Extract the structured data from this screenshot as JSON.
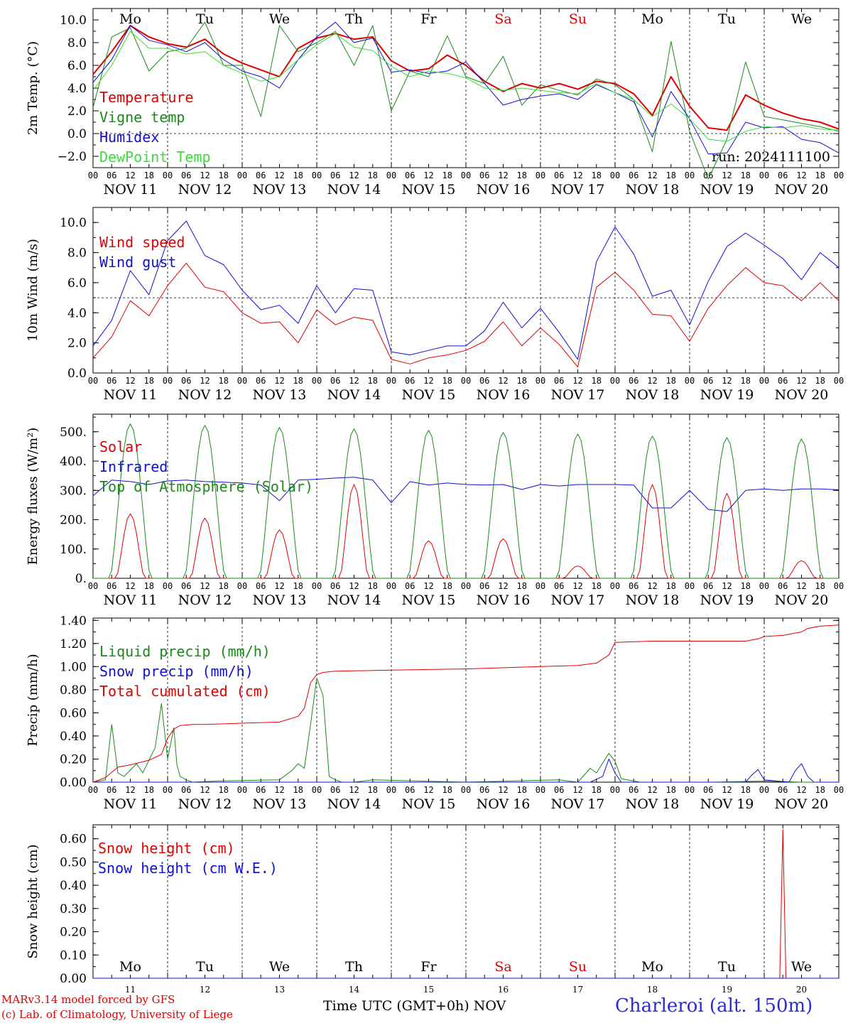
{
  "chart_data": [
    {
      "type": "line",
      "ylabel": "2m Temp. (°C)",
      "ylim": [
        -3.0,
        11.0
      ],
      "yticks": [
        "10.0",
        "8.0",
        "6.0",
        "4.0",
        "2.0",
        "0.0",
        "−2.0"
      ],
      "ytick_values": [
        10,
        8,
        6,
        4,
        2,
        0,
        -2
      ],
      "reference_line": 0,
      "run_label": "run: 2024111100",
      "day_names": [
        "Mo",
        "Tu",
        "We",
        "Th",
        "Fr",
        "Sa",
        "Su",
        "Mo",
        "Tu",
        "We"
      ],
      "day_colors": [
        "#000000",
        "#000000",
        "#000000",
        "#000000",
        "#000000",
        "#e00000",
        "#e00000",
        "#000000",
        "#000000",
        "#000000"
      ],
      "x_hours_from_start": [
        0,
        6,
        12,
        18,
        24,
        30,
        36,
        42,
        48,
        54,
        60,
        66,
        72,
        78,
        84,
        90,
        96,
        102,
        108,
        114,
        120,
        126,
        132,
        138,
        144,
        150,
        156,
        162,
        168,
        174,
        180,
        186,
        192,
        198,
        204,
        210,
        216,
        222,
        228,
        234,
        240
      ],
      "series": [
        {
          "name": "Temperature",
          "color": "#e00000",
          "width": 2,
          "values": [
            5.2,
            7.2,
            9.5,
            8.5,
            7.9,
            7.6,
            8.3,
            7.0,
            6.2,
            5.6,
            5.0,
            7.5,
            8.4,
            8.8,
            8.3,
            8.5,
            6.4,
            5.5,
            5.7,
            6.9,
            6.0,
            4.6,
            3.7,
            4.4,
            4.0,
            4.4,
            3.9,
            4.6,
            4.4,
            3.5,
            1.6,
            5.0,
            2.4,
            0.5,
            0.3,
            3.4,
            2.5,
            1.8,
            1.3,
            1.0,
            0.4
          ]
        },
        {
          "name": "Vigne temp",
          "color": "#1a8a1a",
          "width": 1,
          "values": [
            2.3,
            8.5,
            9.3,
            5.5,
            7.2,
            7.5,
            9.8,
            6.0,
            6.0,
            1.5,
            9.5,
            7.2,
            8.0,
            9.0,
            6.0,
            9.5,
            2.0,
            5.5,
            5.0,
            8.6,
            5.0,
            4.4,
            6.8,
            2.5,
            4.3,
            3.8,
            3.4,
            4.8,
            4.3,
            3.0,
            -1.6,
            8.1,
            0.2,
            -4.0,
            -0.5,
            6.3,
            1.5,
            1.2,
            0.9,
            0.6,
            0.2
          ]
        },
        {
          "name": "Humidex",
          "color": "#1010d0",
          "width": 1,
          "values": [
            4.5,
            6.5,
            9.5,
            8.2,
            7.8,
            7.2,
            8.0,
            6.5,
            5.5,
            5.0,
            4.0,
            6.5,
            8.5,
            9.8,
            8.0,
            8.4,
            5.4,
            5.6,
            5.3,
            5.5,
            6.3,
            4.4,
            2.5,
            3.0,
            3.3,
            3.5,
            3.0,
            4.3,
            3.6,
            2.8,
            -0.3,
            3.7,
            1.3,
            -1.8,
            -1.7,
            1.0,
            0.5,
            0.6,
            -0.5,
            -0.8,
            -1.7
          ]
        },
        {
          "name": "DewPoint Temp",
          "color": "#3cdc3c",
          "width": 1,
          "values": [
            3.8,
            6.0,
            9.0,
            7.5,
            7.5,
            7.0,
            7.2,
            6.0,
            5.3,
            4.6,
            5.0,
            6.5,
            7.8,
            8.8,
            7.6,
            7.3,
            5.9,
            5.0,
            5.5,
            5.3,
            4.9,
            4.0,
            3.8,
            4.0,
            3.8,
            3.6,
            3.5,
            4.4,
            3.6,
            3.0,
            1.5,
            2.6,
            1.3,
            -0.5,
            -0.7,
            0.2,
            0.6,
            0.5,
            0.7,
            0.4,
            0.3
          ]
        }
      ]
    },
    {
      "type": "line",
      "ylabel": "10m Wind (m/s)",
      "ylim": [
        0.0,
        11.0
      ],
      "yticks": [
        "10.0",
        "8.0",
        "6.0",
        "4.0",
        "2.0",
        "0.0"
      ],
      "ytick_values": [
        10,
        8,
        6,
        4,
        2,
        0
      ],
      "reference_line": 5,
      "x_hours_from_start": [
        0,
        6,
        12,
        18,
        24,
        30,
        36,
        42,
        48,
        54,
        60,
        66,
        72,
        78,
        84,
        90,
        96,
        102,
        108,
        114,
        120,
        126,
        132,
        138,
        144,
        150,
        156,
        162,
        168,
        174,
        180,
        186,
        192,
        198,
        204,
        210,
        216,
        222,
        228,
        234,
        240
      ],
      "series": [
        {
          "name": "Wind speed",
          "color": "#e00000",
          "width": 1,
          "values": [
            1.0,
            2.4,
            4.8,
            3.8,
            5.8,
            7.3,
            5.7,
            5.4,
            4.0,
            3.3,
            3.4,
            2.0,
            4.2,
            3.2,
            3.7,
            3.5,
            0.9,
            0.6,
            1.0,
            1.2,
            1.5,
            2.1,
            3.4,
            1.8,
            3.0,
            1.9,
            0.4,
            5.7,
            6.7,
            5.5,
            3.9,
            3.8,
            2.1,
            4.3,
            5.8,
            7.0,
            6.0,
            5.8,
            4.8,
            6.0,
            4.8
          ]
        },
        {
          "name": "Wind gust",
          "color": "#1010d0",
          "width": 1,
          "values": [
            1.8,
            3.5,
            6.8,
            5.2,
            8.8,
            10.1,
            7.8,
            7.2,
            5.5,
            4.2,
            4.5,
            3.3,
            5.8,
            4.0,
            5.6,
            5.5,
            1.4,
            1.2,
            1.5,
            1.8,
            1.8,
            2.8,
            4.7,
            3.0,
            4.3,
            2.7,
            0.9,
            7.4,
            9.7,
            7.9,
            5.1,
            5.5,
            3.2,
            6.1,
            8.4,
            9.3,
            8.5,
            7.6,
            6.2,
            8.0,
            7.0
          ]
        }
      ]
    },
    {
      "type": "line",
      "ylabel": "Energy fluxes (W/m²)",
      "ylim": [
        0,
        560
      ],
      "yticks": [
        "500.",
        "400.",
        "300.",
        "200.",
        "100.",
        "0."
      ],
      "ytick_values": [
        500,
        400,
        300,
        200,
        100,
        0
      ],
      "reference_line": null,
      "daily_peaks": {
        "solar": [
          220,
          205,
          165,
          320,
          128,
          135,
          42,
          320,
          290,
          60
        ],
        "top_of_atmosphere": [
          527,
          522,
          515,
          510,
          505,
          498,
          492,
          485,
          480,
          475
        ]
      },
      "series": [
        {
          "name": "Solar",
          "color": "#e00000",
          "width": 1
        },
        {
          "name": "Infrared",
          "color": "#1010d0",
          "width": 1,
          "x_hours_from_start": [
            0,
            6,
            12,
            18,
            24,
            30,
            36,
            42,
            48,
            54,
            60,
            66,
            72,
            78,
            84,
            90,
            96,
            102,
            108,
            114,
            120,
            126,
            132,
            138,
            144,
            150,
            156,
            162,
            168,
            174,
            180,
            186,
            192,
            198,
            204,
            210,
            216,
            222,
            228,
            234,
            240
          ],
          "values": [
            282,
            335,
            330,
            320,
            332,
            335,
            330,
            328,
            325,
            318,
            265,
            335,
            338,
            342,
            345,
            335,
            258,
            330,
            318,
            325,
            320,
            318,
            320,
            303,
            320,
            315,
            320,
            320,
            320,
            318,
            240,
            240,
            300,
            235,
            228,
            300,
            305,
            300,
            305,
            305,
            302
          ]
        },
        {
          "name": "Top of Atmosphere (Solar)",
          "color": "#1a8a1a",
          "width": 1
        }
      ]
    },
    {
      "type": "line",
      "ylabel": "Precip (mm/h)",
      "ylim": [
        0.0,
        1.42
      ],
      "yticks": [
        "1.40",
        "1.20",
        "1.00",
        "0.80",
        "0.60",
        "0.40",
        "0.20",
        "0.00"
      ],
      "ytick_values": [
        1.4,
        1.2,
        1.0,
        0.8,
        0.6,
        0.4,
        0.2,
        0.0
      ],
      "reference_line": null,
      "series": [
        {
          "name": "Liquid precip (mm/h)",
          "color": "#1a8a1a",
          "width": 1,
          "x_hours_from_start": [
            0,
            4,
            6,
            8,
            10,
            14,
            16,
            20,
            22,
            24,
            26,
            27,
            28,
            30,
            32,
            40,
            60,
            64,
            66,
            68,
            70,
            72,
            74,
            76,
            78,
            80,
            84,
            90,
            120,
            150,
            156,
            160,
            162,
            166,
            168,
            170,
            176,
            200,
            216,
            228,
            240
          ],
          "values": [
            0,
            0.02,
            0.5,
            0.08,
            0.05,
            0.16,
            0.08,
            0.3,
            0.68,
            0.2,
            0.47,
            0.15,
            0.05,
            0.02,
            0.0,
            0.01,
            0.02,
            0.1,
            0.16,
            0.12,
            0.5,
            0.9,
            0.75,
            0.05,
            0.02,
            0.0,
            0.0,
            0.02,
            0.0,
            0.02,
            0.0,
            0.12,
            0.08,
            0.25,
            0.18,
            0.03,
            0.0,
            0.0,
            0.01,
            0.0,
            0.0
          ]
        },
        {
          "name": "Snow precip (mm/h)",
          "color": "#1010d0",
          "width": 1,
          "x_hours_from_start": [
            0,
            160,
            164,
            166,
            168,
            170,
            200,
            210,
            212,
            214,
            216,
            224,
            226,
            228,
            230,
            232,
            240
          ],
          "values": [
            0,
            0,
            0.05,
            0.2,
            0.08,
            0.0,
            0.0,
            0.0,
            0.06,
            0.11,
            0.02,
            0.0,
            0.1,
            0.16,
            0.05,
            0.0,
            0.0
          ]
        },
        {
          "name": "Total cumulated (cm)",
          "color": "#e00000",
          "width": 1,
          "x_hours_from_start": [
            0,
            4,
            8,
            12,
            18,
            22,
            24,
            26,
            28,
            32,
            36,
            48,
            60,
            66,
            68,
            70,
            72,
            74,
            78,
            96,
            120,
            144,
            156,
            162,
            166,
            168,
            180,
            192,
            204,
            210,
            214,
            216,
            222,
            228,
            230,
            234,
            240
          ],
          "values": [
            0,
            0.04,
            0.13,
            0.15,
            0.19,
            0.24,
            0.38,
            0.46,
            0.49,
            0.5,
            0.5,
            0.51,
            0.52,
            0.57,
            0.64,
            0.86,
            0.93,
            0.95,
            0.96,
            0.97,
            0.98,
            1.0,
            1.01,
            1.03,
            1.1,
            1.21,
            1.22,
            1.22,
            1.22,
            1.22,
            1.24,
            1.26,
            1.27,
            1.3,
            1.33,
            1.35,
            1.36
          ]
        }
      ]
    },
    {
      "type": "line",
      "ylabel": "Snow height (cm)",
      "ylim": [
        0.0,
        0.66
      ],
      "yticks": [
        "0.60",
        "0.50",
        "0.40",
        "0.30",
        "0.20",
        "0.10",
        "0.00"
      ],
      "ytick_values": [
        0.6,
        0.5,
        0.4,
        0.3,
        0.2,
        0.1,
        0.0
      ],
      "reference_line": null,
      "day_names": [
        "Mo",
        "Tu",
        "We",
        "Th",
        "Fr",
        "Sa",
        "Su",
        "Mo",
        "Tu",
        "We"
      ],
      "day_colors": [
        "#000000",
        "#000000",
        "#000000",
        "#000000",
        "#000000",
        "#e00000",
        "#e00000",
        "#000000",
        "#000000",
        "#000000"
      ],
      "day_numbers": [
        "11",
        "12",
        "13",
        "14",
        "15",
        "16",
        "17",
        "18",
        "19",
        "20"
      ],
      "series": [
        {
          "name": "Snow height (cm)",
          "color": "#e00000",
          "width": 1,
          "x_hours_from_start": [
            0,
            219,
            221,
            222,
            223,
            240
          ],
          "values": [
            0,
            0,
            0.0,
            0.64,
            0.0,
            0
          ]
        },
        {
          "name": "Snow height (cm W.E.)",
          "color": "#1010d0",
          "width": 1,
          "x_hours_from_start": [
            0,
            240
          ],
          "values": [
            0,
            0
          ]
        }
      ]
    }
  ],
  "x_axis": {
    "hour_labels": [
      "00",
      "06",
      "12",
      "18"
    ],
    "end_label": "00",
    "date_labels": [
      "NOV 11",
      "NOV 12",
      "NOV 13",
      "NOV 14",
      "NOV 15",
      "NOV 16",
      "NOV 17",
      "NOV 18",
      "NOV 19",
      "NOV 20"
    ],
    "total_hours": 240
  },
  "footer": {
    "credit_line1": "MARv3.14 model forced by GFS",
    "credit_line2": "(c) Lab. of Climatology, University of Liege",
    "x_title": "Time UTC (GMT+0h) NOV",
    "station": "Charleroi (alt. 150m)"
  }
}
